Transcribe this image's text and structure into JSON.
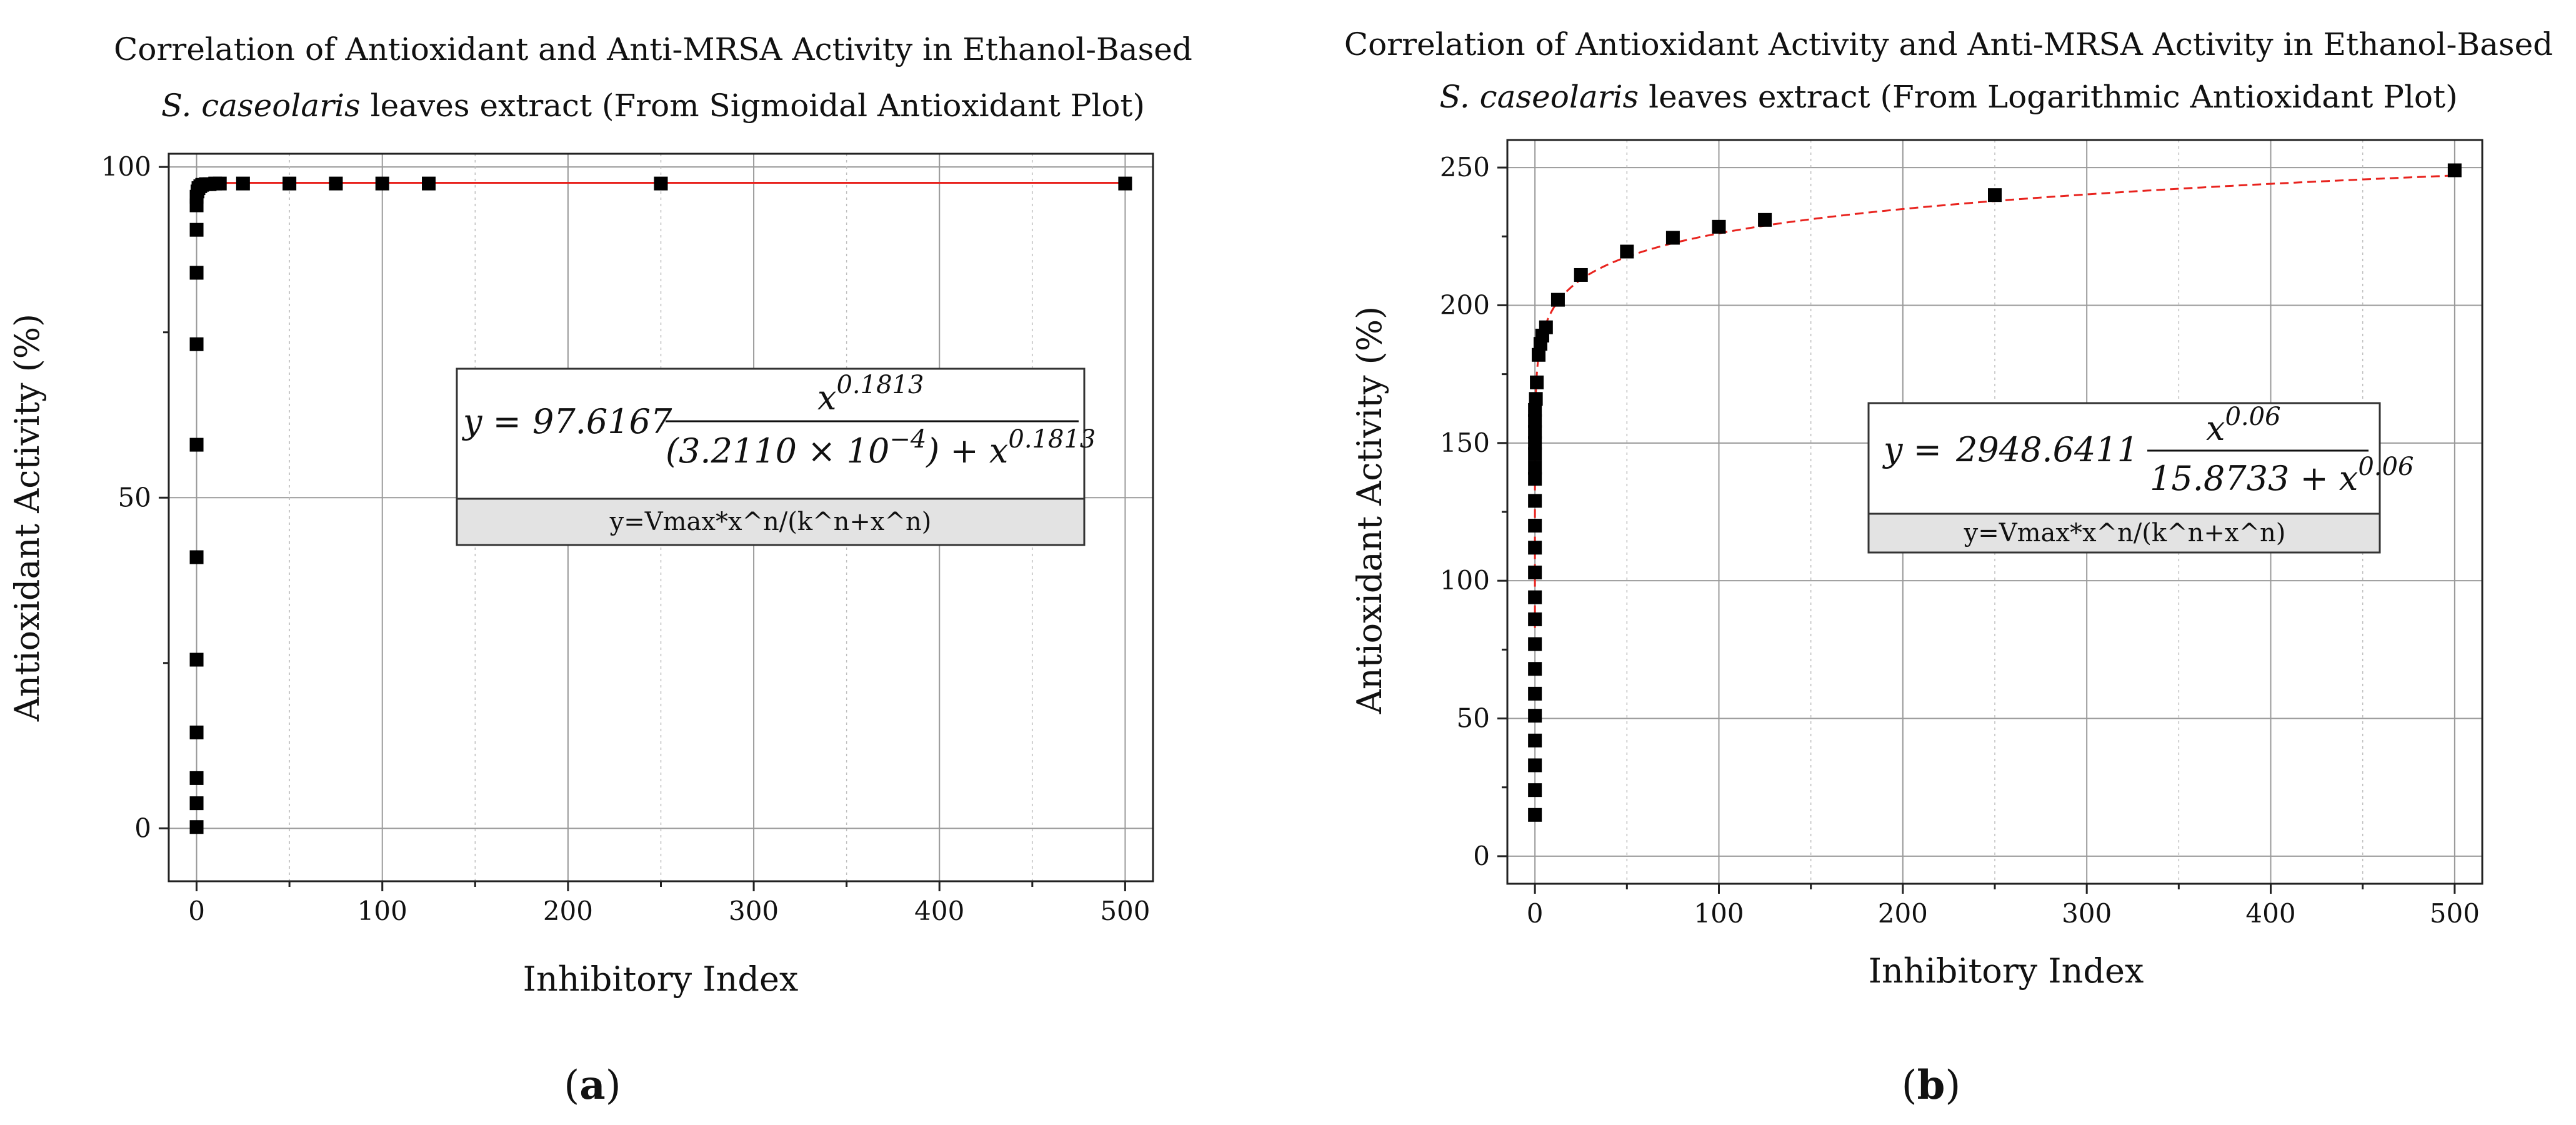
{
  "chart_data": [
    {
      "type": "scatter",
      "panel": "a",
      "title_line1": "Correlation of Antioxidant and Anti-MRSA Activity in Ethanol-Based",
      "title_line2_italic": "S. caseolaris",
      "title_line2_rest": " leaves extract (From Sigmoidal Antioxidant Plot)",
      "xlabel": "Inhibitory Index",
      "ylabel": "Antioxidant Activity (%)",
      "xlim": [
        -15,
        515
      ],
      "ylim": [
        -8,
        102
      ],
      "xticks": [
        0,
        100,
        200,
        300,
        400,
        500
      ],
      "yticks": [
        0,
        50,
        100
      ],
      "grid": true,
      "fit_color": "#e8231e",
      "marker_color": "#000000",
      "fit": {
        "Vmax": 97.6167,
        "k_pow_n": 0.0003211,
        "n": 0.1813
      },
      "equation": {
        "y_prefix": "y =",
        "coefficient": "97.6167",
        "numerator": "x",
        "numerator_exp": "0.1813",
        "denominator": "(3.2110 × 10",
        "denominator_exp": "−4",
        "denominator_tail": ") + x",
        "denominator_tail_exp": "0.1813",
        "formula": "y=Vmax*x^n/(k^n+x^n)"
      },
      "points": [
        [
          0,
          0.2
        ],
        [
          0,
          3.8
        ],
        [
          0,
          7.6
        ],
        [
          0,
          14.5
        ],
        [
          0,
          25.5
        ],
        [
          0,
          41.0
        ],
        [
          0,
          58.0
        ],
        [
          0,
          73.2
        ],
        [
          0,
          84.0
        ],
        [
          0,
          90.5
        ],
        [
          0,
          94.2
        ],
        [
          0,
          95.5
        ],
        [
          0.5,
          96.3
        ],
        [
          1,
          96.8
        ],
        [
          2,
          97.1
        ],
        [
          3,
          97.3
        ],
        [
          5,
          97.4
        ],
        [
          7,
          97.4
        ],
        [
          10,
          97.5
        ],
        [
          12.5,
          97.5
        ],
        [
          25,
          97.5
        ],
        [
          50,
          97.5
        ],
        [
          75,
          97.5
        ],
        [
          100,
          97.5
        ],
        [
          125,
          97.5
        ],
        [
          250,
          97.5
        ],
        [
          500,
          97.5
        ]
      ]
    },
    {
      "type": "scatter",
      "panel": "b",
      "title_line1": "Correlation of Antioxidant Activity and Anti-MRSA Activity in Ethanol-Based",
      "title_line2_italic": "S. caseolaris",
      "title_line2_rest": " leaves extract (From Logarithmic Antioxidant Plot)",
      "xlabel": "Inhibitory Index",
      "ylabel": "Antioxidant Activity (%)",
      "xlim": [
        -15,
        515
      ],
      "ylim": [
        -10,
        260
      ],
      "xticks": [
        0,
        100,
        200,
        300,
        400,
        500
      ],
      "yticks": [
        0,
        50,
        100,
        150,
        200,
        250
      ],
      "grid": true,
      "fit_color": "#e8231e",
      "marker_color": "#000000",
      "fit": {
        "Vmax": 2948.6411,
        "k_pow_n": 15.8733,
        "n": 0.06
      },
      "equation": {
        "y_prefix": "y =",
        "coefficient": "2948.6411",
        "numerator": "x",
        "numerator_exp": "0.06",
        "denominator": "15.8733 + x",
        "denominator_exp": "0.06",
        "formula": "y=Vmax*x^n/(k^n+x^n)"
      },
      "points": [
        [
          0,
          15
        ],
        [
          0,
          24
        ],
        [
          0,
          33
        ],
        [
          0,
          42
        ],
        [
          0,
          51
        ],
        [
          0,
          59
        ],
        [
          0,
          68
        ],
        [
          0,
          77
        ],
        [
          0,
          86
        ],
        [
          0,
          94
        ],
        [
          0,
          103
        ],
        [
          0,
          112
        ],
        [
          0,
          120
        ],
        [
          0,
          129
        ],
        [
          0,
          137
        ],
        [
          0,
          141
        ],
        [
          0,
          146
        ],
        [
          0,
          150
        ],
        [
          0,
          154
        ],
        [
          0,
          158
        ],
        [
          0,
          162
        ],
        [
          0.5,
          166
        ],
        [
          1,
          172
        ],
        [
          2,
          182
        ],
        [
          3,
          186
        ],
        [
          4,
          189
        ],
        [
          6,
          192
        ],
        [
          12.5,
          202
        ],
        [
          25,
          211
        ],
        [
          50,
          219.5
        ],
        [
          75,
          224.5
        ],
        [
          100,
          228.5
        ],
        [
          125,
          231
        ],
        [
          250,
          240
        ],
        [
          500,
          249
        ]
      ]
    }
  ],
  "panel_labels": [
    "a",
    "b"
  ]
}
